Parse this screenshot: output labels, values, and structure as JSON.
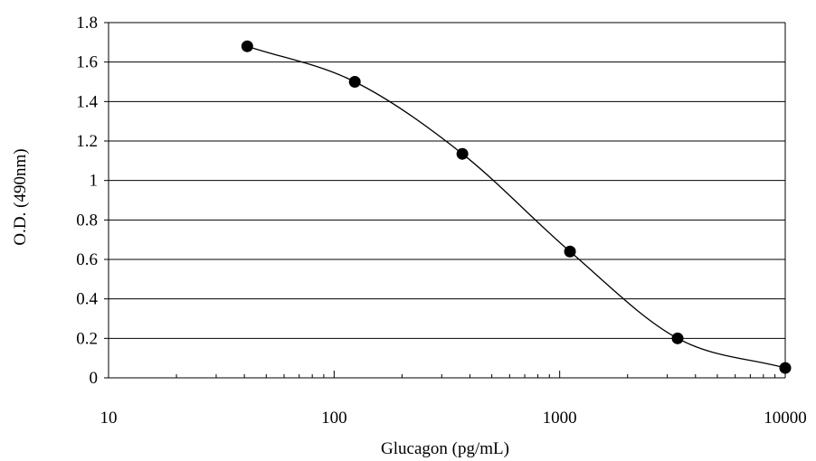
{
  "chart_data": {
    "type": "scatter",
    "title": "",
    "xlabel": "Glucagon (pg/mL)",
    "ylabel": "O.D. (490nm)",
    "x_scale": "log",
    "xlim": [
      10,
      10000
    ],
    "ylim": [
      0,
      1.8
    ],
    "x_ticks": [
      "10",
      "100",
      "1000",
      "10000"
    ],
    "y_ticks": [
      "0",
      "0.2",
      "0.4",
      "0.6",
      "0.8",
      "1",
      "1.2",
      "1.4",
      "1.6",
      "1.8"
    ],
    "grid": "horizontal",
    "legend": "none",
    "series": [
      {
        "x": [
          41.2,
          123.5,
          370.4,
          1111,
          3333,
          10000
        ],
        "y": [
          1.68,
          1.5,
          1.135,
          0.64,
          0.2,
          0.05
        ]
      }
    ],
    "curve": "smooth-fit",
    "colors": {
      "marker": "#000000",
      "line": "#000000",
      "grid": "#000000"
    }
  }
}
